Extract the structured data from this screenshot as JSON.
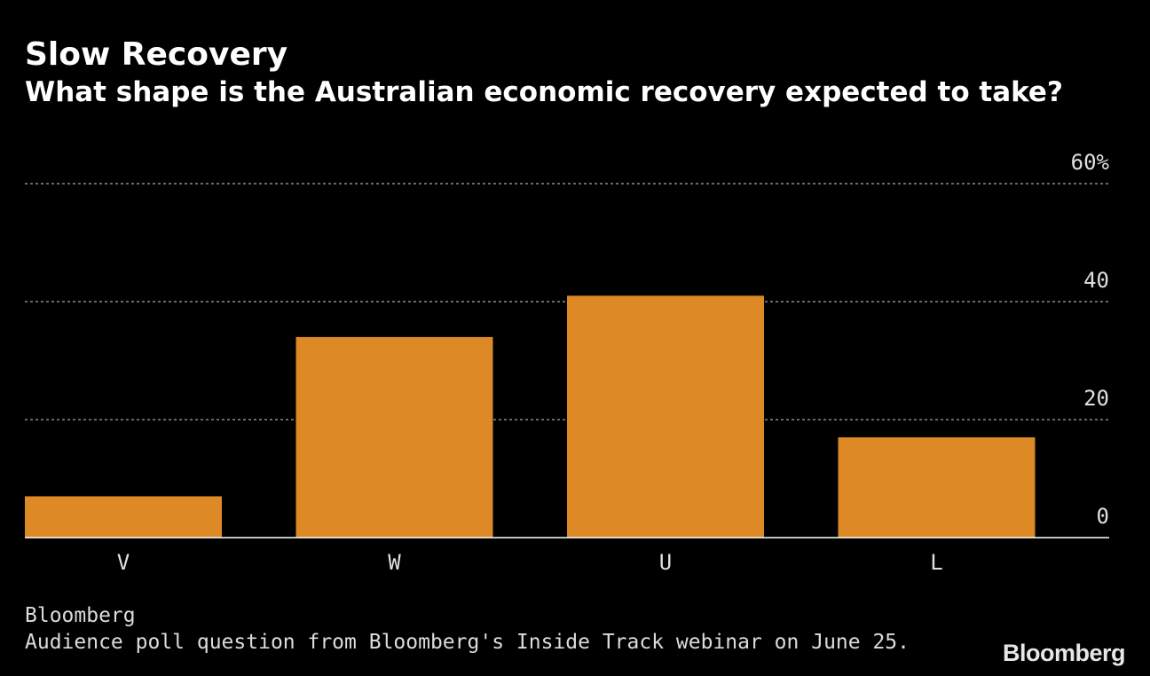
{
  "header": {
    "title": "Slow Recovery",
    "subtitle": "What shape is the Australian economic recovery expected to take?"
  },
  "footer": {
    "source": "Bloomberg",
    "note": "Audience poll question from Bloomberg's Inside Track webinar on June 25.",
    "logo": "Bloomberg"
  },
  "colors": {
    "background": "#000000",
    "bar": "#dd8925",
    "gridline": "#8a8a8a",
    "axis": "#ffffff",
    "text": "#ffffff",
    "tick_text": "#e0e0e0"
  },
  "chart_data": {
    "type": "bar",
    "title": "Slow Recovery",
    "subtitle": "What shape is the Australian economic recovery expected to take?",
    "categories": [
      "V",
      "W",
      "U",
      "L"
    ],
    "values": [
      7,
      34,
      41,
      17
    ],
    "xlabel": "",
    "ylabel": "",
    "ylim": [
      0,
      60
    ],
    "yticks": [
      0,
      20,
      40,
      60
    ],
    "ytick_labels": [
      "0",
      "20",
      "40",
      "60%"
    ],
    "grid": true,
    "y_axis_position": "right"
  }
}
